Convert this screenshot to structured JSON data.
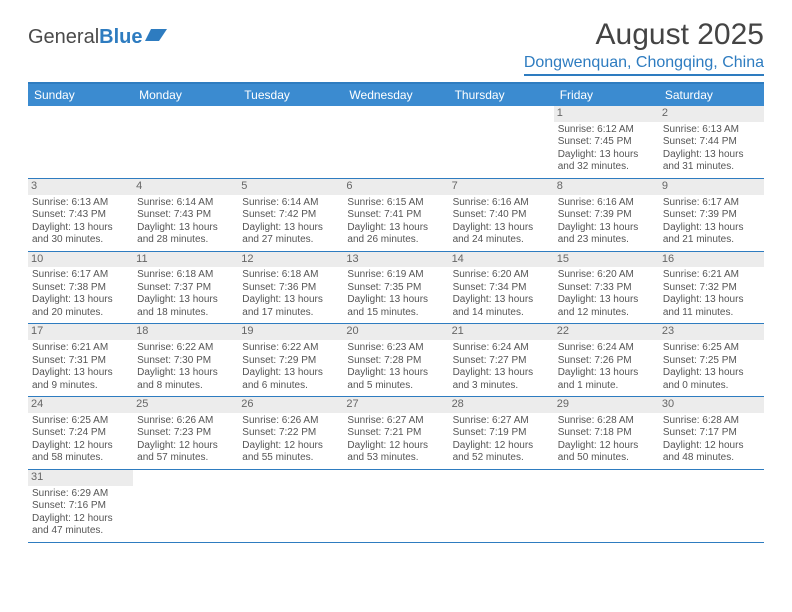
{
  "logo": {
    "text1": "General",
    "text2": "Blue"
  },
  "title": "August 2025",
  "location": "Dongwenquan, Chongqing, China",
  "colors": {
    "brand": "#2e7cc0",
    "header_bg": "#3b8bd0",
    "daynum_bg": "#ececec",
    "text": "#555555"
  },
  "day_headers": [
    "Sunday",
    "Monday",
    "Tuesday",
    "Wednesday",
    "Thursday",
    "Friday",
    "Saturday"
  ],
  "weeks": [
    [
      {
        "empty": true
      },
      {
        "empty": true
      },
      {
        "empty": true
      },
      {
        "empty": true
      },
      {
        "empty": true
      },
      {
        "n": "1",
        "sr": "Sunrise: 6:12 AM",
        "ss": "Sunset: 7:45 PM",
        "d1": "Daylight: 13 hours",
        "d2": "and 32 minutes."
      },
      {
        "n": "2",
        "sr": "Sunrise: 6:13 AM",
        "ss": "Sunset: 7:44 PM",
        "d1": "Daylight: 13 hours",
        "d2": "and 31 minutes."
      }
    ],
    [
      {
        "n": "3",
        "sr": "Sunrise: 6:13 AM",
        "ss": "Sunset: 7:43 PM",
        "d1": "Daylight: 13 hours",
        "d2": "and 30 minutes."
      },
      {
        "n": "4",
        "sr": "Sunrise: 6:14 AM",
        "ss": "Sunset: 7:43 PM",
        "d1": "Daylight: 13 hours",
        "d2": "and 28 minutes."
      },
      {
        "n": "5",
        "sr": "Sunrise: 6:14 AM",
        "ss": "Sunset: 7:42 PM",
        "d1": "Daylight: 13 hours",
        "d2": "and 27 minutes."
      },
      {
        "n": "6",
        "sr": "Sunrise: 6:15 AM",
        "ss": "Sunset: 7:41 PM",
        "d1": "Daylight: 13 hours",
        "d2": "and 26 minutes."
      },
      {
        "n": "7",
        "sr": "Sunrise: 6:16 AM",
        "ss": "Sunset: 7:40 PM",
        "d1": "Daylight: 13 hours",
        "d2": "and 24 minutes."
      },
      {
        "n": "8",
        "sr": "Sunrise: 6:16 AM",
        "ss": "Sunset: 7:39 PM",
        "d1": "Daylight: 13 hours",
        "d2": "and 23 minutes."
      },
      {
        "n": "9",
        "sr": "Sunrise: 6:17 AM",
        "ss": "Sunset: 7:39 PM",
        "d1": "Daylight: 13 hours",
        "d2": "and 21 minutes."
      }
    ],
    [
      {
        "n": "10",
        "sr": "Sunrise: 6:17 AM",
        "ss": "Sunset: 7:38 PM",
        "d1": "Daylight: 13 hours",
        "d2": "and 20 minutes."
      },
      {
        "n": "11",
        "sr": "Sunrise: 6:18 AM",
        "ss": "Sunset: 7:37 PM",
        "d1": "Daylight: 13 hours",
        "d2": "and 18 minutes."
      },
      {
        "n": "12",
        "sr": "Sunrise: 6:18 AM",
        "ss": "Sunset: 7:36 PM",
        "d1": "Daylight: 13 hours",
        "d2": "and 17 minutes."
      },
      {
        "n": "13",
        "sr": "Sunrise: 6:19 AM",
        "ss": "Sunset: 7:35 PM",
        "d1": "Daylight: 13 hours",
        "d2": "and 15 minutes."
      },
      {
        "n": "14",
        "sr": "Sunrise: 6:20 AM",
        "ss": "Sunset: 7:34 PM",
        "d1": "Daylight: 13 hours",
        "d2": "and 14 minutes."
      },
      {
        "n": "15",
        "sr": "Sunrise: 6:20 AM",
        "ss": "Sunset: 7:33 PM",
        "d1": "Daylight: 13 hours",
        "d2": "and 12 minutes."
      },
      {
        "n": "16",
        "sr": "Sunrise: 6:21 AM",
        "ss": "Sunset: 7:32 PM",
        "d1": "Daylight: 13 hours",
        "d2": "and 11 minutes."
      }
    ],
    [
      {
        "n": "17",
        "sr": "Sunrise: 6:21 AM",
        "ss": "Sunset: 7:31 PM",
        "d1": "Daylight: 13 hours",
        "d2": "and 9 minutes."
      },
      {
        "n": "18",
        "sr": "Sunrise: 6:22 AM",
        "ss": "Sunset: 7:30 PM",
        "d1": "Daylight: 13 hours",
        "d2": "and 8 minutes."
      },
      {
        "n": "19",
        "sr": "Sunrise: 6:22 AM",
        "ss": "Sunset: 7:29 PM",
        "d1": "Daylight: 13 hours",
        "d2": "and 6 minutes."
      },
      {
        "n": "20",
        "sr": "Sunrise: 6:23 AM",
        "ss": "Sunset: 7:28 PM",
        "d1": "Daylight: 13 hours",
        "d2": "and 5 minutes."
      },
      {
        "n": "21",
        "sr": "Sunrise: 6:24 AM",
        "ss": "Sunset: 7:27 PM",
        "d1": "Daylight: 13 hours",
        "d2": "and 3 minutes."
      },
      {
        "n": "22",
        "sr": "Sunrise: 6:24 AM",
        "ss": "Sunset: 7:26 PM",
        "d1": "Daylight: 13 hours",
        "d2": "and 1 minute."
      },
      {
        "n": "23",
        "sr": "Sunrise: 6:25 AM",
        "ss": "Sunset: 7:25 PM",
        "d1": "Daylight: 13 hours",
        "d2": "and 0 minutes."
      }
    ],
    [
      {
        "n": "24",
        "sr": "Sunrise: 6:25 AM",
        "ss": "Sunset: 7:24 PM",
        "d1": "Daylight: 12 hours",
        "d2": "and 58 minutes."
      },
      {
        "n": "25",
        "sr": "Sunrise: 6:26 AM",
        "ss": "Sunset: 7:23 PM",
        "d1": "Daylight: 12 hours",
        "d2": "and 57 minutes."
      },
      {
        "n": "26",
        "sr": "Sunrise: 6:26 AM",
        "ss": "Sunset: 7:22 PM",
        "d1": "Daylight: 12 hours",
        "d2": "and 55 minutes."
      },
      {
        "n": "27",
        "sr": "Sunrise: 6:27 AM",
        "ss": "Sunset: 7:21 PM",
        "d1": "Daylight: 12 hours",
        "d2": "and 53 minutes."
      },
      {
        "n": "28",
        "sr": "Sunrise: 6:27 AM",
        "ss": "Sunset: 7:19 PM",
        "d1": "Daylight: 12 hours",
        "d2": "and 52 minutes."
      },
      {
        "n": "29",
        "sr": "Sunrise: 6:28 AM",
        "ss": "Sunset: 7:18 PM",
        "d1": "Daylight: 12 hours",
        "d2": "and 50 minutes."
      },
      {
        "n": "30",
        "sr": "Sunrise: 6:28 AM",
        "ss": "Sunset: 7:17 PM",
        "d1": "Daylight: 12 hours",
        "d2": "and 48 minutes."
      }
    ],
    [
      {
        "n": "31",
        "sr": "Sunrise: 6:29 AM",
        "ss": "Sunset: 7:16 PM",
        "d1": "Daylight: 12 hours",
        "d2": "and 47 minutes."
      },
      {
        "empty": true
      },
      {
        "empty": true
      },
      {
        "empty": true
      },
      {
        "empty": true
      },
      {
        "empty": true
      },
      {
        "empty": true
      }
    ]
  ]
}
